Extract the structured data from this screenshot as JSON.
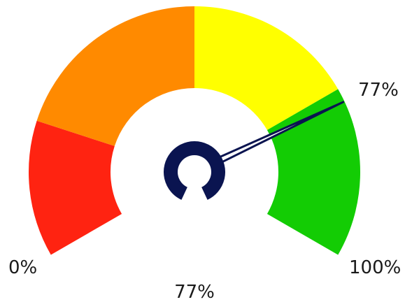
{
  "chart_data": {
    "type": "gauge",
    "value": 77,
    "min": 0,
    "max": 100,
    "min_label": "0%",
    "max_label": "100%",
    "value_label": "77%",
    "pointer_label": "77%",
    "bands": [
      {
        "from": 0,
        "to": 20,
        "color": "#ff2311"
      },
      {
        "from": 20,
        "to": 50,
        "color": "#ff8a00"
      },
      {
        "from": 50,
        "to": 75,
        "color": "#ffff00"
      },
      {
        "from": 75,
        "to": 100,
        "color": "#13cc04"
      }
    ],
    "needle_color": "#0a1450"
  }
}
